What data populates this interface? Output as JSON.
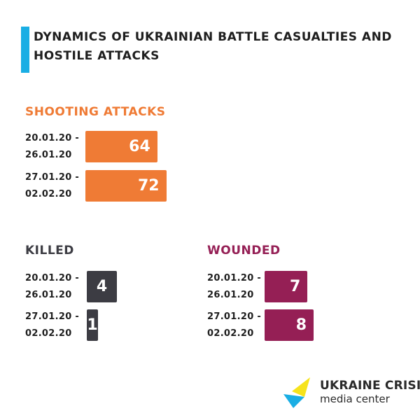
{
  "title": "DYNAMICS OF UKRAINIAN BATTLE CASUALTIES AND HOSTILE ATTACKS",
  "colors": {
    "accent_bar": "#1aaee4",
    "shooting": "#ef7b35",
    "killed": "#3c3c43",
    "wounded": "#951f55",
    "logo_blue": "#1aaee4",
    "logo_yellow": "#f6e31c"
  },
  "chart_data": [
    {
      "type": "bar",
      "title": "SHOOTING ATTACKS",
      "categories": [
        [
          "20.01.20 -",
          "26.01.20"
        ],
        [
          "27.01.20 -",
          "02.02.20"
        ]
      ],
      "values": [
        64,
        72
      ],
      "color": "#ef7b35"
    },
    {
      "type": "bar",
      "title": "KILLED",
      "categories": [
        [
          "20.01.20 -",
          "26.01.20"
        ],
        [
          "27.01.20 -",
          "02.02.20"
        ]
      ],
      "values": [
        4,
        1
      ],
      "color": "#3c3c43"
    },
    {
      "type": "bar",
      "title": "WOUNDED",
      "categories": [
        [
          "20.01.20 -",
          "26.01.20"
        ],
        [
          "27.01.20 -",
          "02.02.20"
        ]
      ],
      "values": [
        7,
        8
      ],
      "color": "#951f55"
    }
  ],
  "logo": {
    "line1": "UKRAINE CRISIS",
    "line2": "media center",
    "icon": "ukraine-crisis-logo-icon"
  }
}
